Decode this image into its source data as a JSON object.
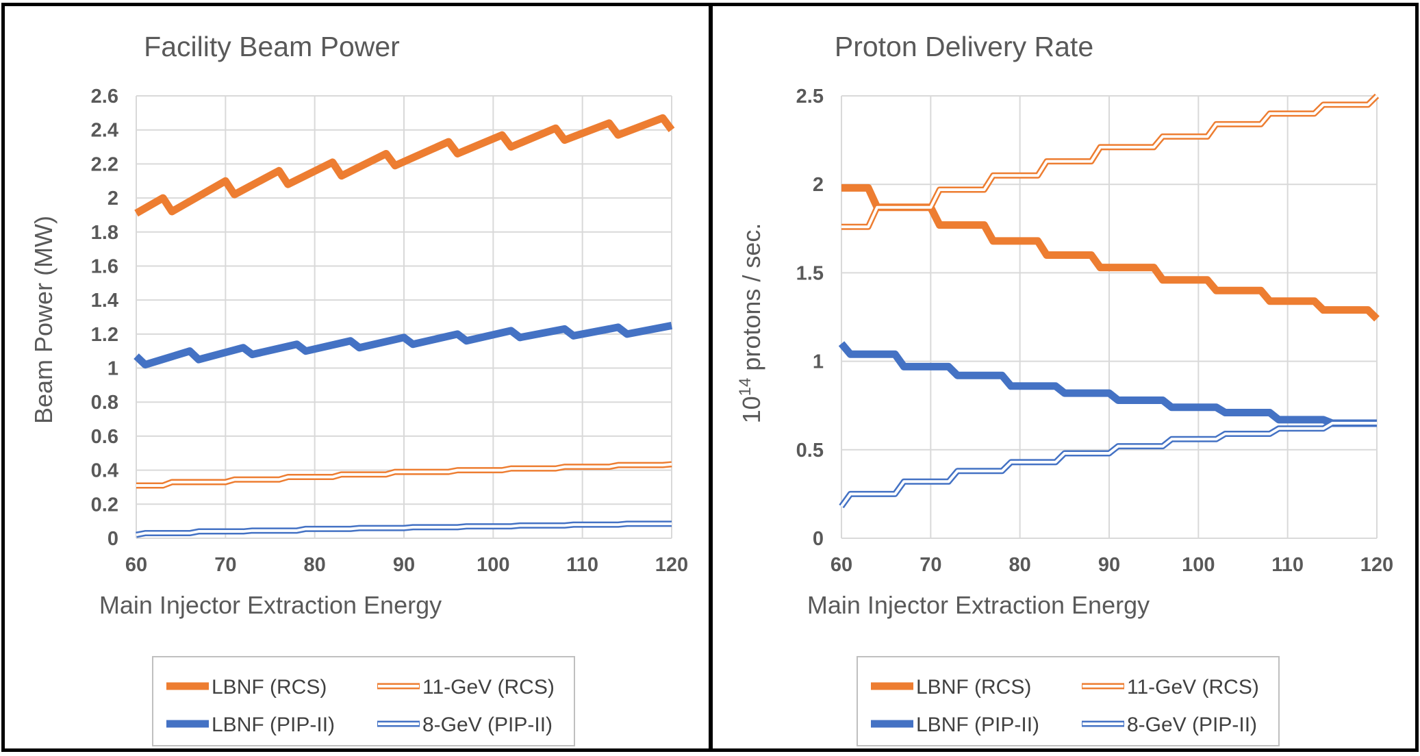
{
  "chart_data": [
    {
      "type": "line",
      "title": "Facility Beam Power",
      "xlabel": "Main Injector Extraction Energy",
      "ylabel": "Beam Power (MW)",
      "xlim": [
        60,
        120
      ],
      "ylim": [
        0,
        2.6
      ],
      "xticks": [
        "60",
        "70",
        "80",
        "90",
        "100",
        "110",
        "120"
      ],
      "yticks": [
        "0",
        "0.2",
        "0.4",
        "0.6",
        "0.8",
        "1",
        "1.2",
        "1.4",
        "1.6",
        "1.8",
        "2",
        "2.2",
        "2.4",
        "2.6"
      ],
      "grid": true,
      "legend_position": "bottom",
      "series": [
        {
          "name": "LBNF (RCS)",
          "color": "#ED7D31",
          "style": "thick",
          "x": [
            60,
            63,
            64,
            70,
            71,
            76,
            77,
            82,
            83,
            88,
            89,
            95,
            96,
            101,
            102,
            107,
            108,
            113,
            114,
            119,
            120
          ],
          "y": [
            1.91,
            2.0,
            1.92,
            2.1,
            2.02,
            2.16,
            2.08,
            2.21,
            2.13,
            2.26,
            2.19,
            2.33,
            2.26,
            2.37,
            2.3,
            2.41,
            2.34,
            2.44,
            2.37,
            2.47,
            2.4
          ]
        },
        {
          "name": "11-GeV (RCS)",
          "color": "#ED7D31",
          "style": "double",
          "x": [
            60,
            63,
            64,
            70,
            71,
            76,
            77,
            82,
            83,
            88,
            89,
            95,
            96,
            101,
            102,
            107,
            108,
            113,
            114,
            119,
            120
          ],
          "y": [
            0.31,
            0.31,
            0.33,
            0.33,
            0.345,
            0.345,
            0.36,
            0.36,
            0.375,
            0.375,
            0.39,
            0.39,
            0.4,
            0.4,
            0.41,
            0.41,
            0.42,
            0.42,
            0.43,
            0.43,
            0.435
          ]
        },
        {
          "name": "LBNF (PIP-II)",
          "color": "#4472C4",
          "style": "thick",
          "x": [
            60,
            61,
            66,
            67,
            72,
            73,
            78,
            79,
            84,
            85,
            90,
            91,
            96,
            97,
            102,
            103,
            108,
            109,
            114,
            115,
            120
          ],
          "y": [
            1.07,
            1.02,
            1.1,
            1.05,
            1.12,
            1.08,
            1.14,
            1.1,
            1.16,
            1.12,
            1.18,
            1.14,
            1.2,
            1.16,
            1.22,
            1.18,
            1.23,
            1.19,
            1.24,
            1.2,
            1.25
          ]
        },
        {
          "name": "8-GeV (PIP-II)",
          "color": "#4472C4",
          "style": "double",
          "x": [
            60,
            61,
            66,
            67,
            72,
            73,
            78,
            79,
            84,
            85,
            90,
            91,
            96,
            97,
            102,
            103,
            108,
            109,
            114,
            115,
            120
          ],
          "y": [
            0.02,
            0.03,
            0.03,
            0.04,
            0.04,
            0.045,
            0.045,
            0.055,
            0.055,
            0.06,
            0.06,
            0.065,
            0.065,
            0.07,
            0.07,
            0.075,
            0.075,
            0.08,
            0.08,
            0.085,
            0.085
          ]
        }
      ]
    },
    {
      "type": "line",
      "title": "Proton Delivery Rate",
      "xlabel": "Main Injector Extraction Energy",
      "ylabel_prefix": "10",
      "ylabel_sup": "14",
      "ylabel_suffix": " protons / sec.",
      "xlim": [
        60,
        120
      ],
      "ylim": [
        0,
        2.5
      ],
      "xticks": [
        "60",
        "70",
        "80",
        "90",
        "100",
        "110",
        "120"
      ],
      "yticks": [
        "0",
        "0.5",
        "1",
        "1.5",
        "2",
        "2.5"
      ],
      "grid": true,
      "legend_position": "bottom",
      "series": [
        {
          "name": "LBNF (RCS)",
          "color": "#ED7D31",
          "style": "thick",
          "x": [
            60,
            63,
            64,
            70,
            71,
            76,
            77,
            82,
            83,
            88,
            89,
            95,
            96,
            101,
            102,
            107,
            108,
            113,
            114,
            119,
            120
          ],
          "y": [
            1.98,
            1.98,
            1.87,
            1.87,
            1.77,
            1.77,
            1.68,
            1.68,
            1.6,
            1.6,
            1.53,
            1.53,
            1.46,
            1.46,
            1.4,
            1.4,
            1.34,
            1.34,
            1.29,
            1.29,
            1.24
          ]
        },
        {
          "name": "11-GeV (RCS)",
          "color": "#ED7D31",
          "style": "double",
          "x": [
            60,
            63,
            64,
            70,
            71,
            76,
            77,
            82,
            83,
            88,
            89,
            95,
            96,
            101,
            102,
            107,
            108,
            113,
            114,
            119,
            120
          ],
          "y": [
            1.76,
            1.76,
            1.87,
            1.87,
            1.97,
            1.97,
            2.05,
            2.05,
            2.13,
            2.13,
            2.21,
            2.21,
            2.27,
            2.27,
            2.34,
            2.34,
            2.4,
            2.4,
            2.45,
            2.45,
            2.5
          ]
        },
        {
          "name": "LBNF (PIP-II)",
          "color": "#4472C4",
          "style": "thick",
          "x": [
            60,
            61,
            66,
            67,
            72,
            73,
            78,
            79,
            84,
            85,
            90,
            91,
            96,
            97,
            102,
            103,
            108,
            109,
            114,
            115,
            120
          ],
          "y": [
            1.1,
            1.04,
            1.04,
            0.97,
            0.97,
            0.92,
            0.92,
            0.86,
            0.86,
            0.82,
            0.82,
            0.78,
            0.78,
            0.74,
            0.74,
            0.71,
            0.71,
            0.67,
            0.67,
            0.65,
            0.65
          ]
        },
        {
          "name": "8-GeV (PIP-II)",
          "color": "#4472C4",
          "style": "double",
          "x": [
            60,
            61,
            66,
            67,
            72,
            73,
            78,
            79,
            84,
            85,
            90,
            91,
            96,
            97,
            102,
            103,
            108,
            109,
            114,
            115,
            120
          ],
          "y": [
            0.18,
            0.25,
            0.25,
            0.32,
            0.32,
            0.38,
            0.38,
            0.43,
            0.43,
            0.48,
            0.48,
            0.52,
            0.52,
            0.56,
            0.56,
            0.59,
            0.59,
            0.62,
            0.62,
            0.65,
            0.65
          ]
        }
      ]
    }
  ]
}
